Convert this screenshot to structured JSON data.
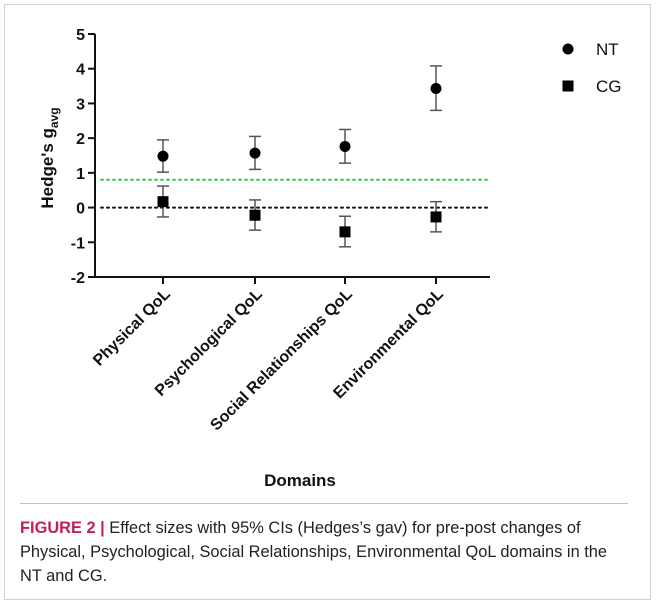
{
  "chart_data": {
    "type": "scatter",
    "ylabel_main": "Hedge's g",
    "ylabel_sub": "avg",
    "xlabel": "Domains",
    "categories": [
      "Physical QoL",
      "Psychological QoL",
      "Social Relationships QoL",
      "Environmental QoL"
    ],
    "ylim": [
      -2,
      5
    ],
    "yticks": [
      -2,
      -1,
      0,
      1,
      2,
      3,
      4,
      5
    ],
    "legend_position": "top-right",
    "series": [
      {
        "name": "NT",
        "marker": "circle",
        "values": [
          1.48,
          1.57,
          1.76,
          3.43
        ],
        "ci_low": [
          1.02,
          1.1,
          1.28,
          2.8
        ],
        "ci_high": [
          1.95,
          2.05,
          2.25,
          4.08
        ]
      },
      {
        "name": "CG",
        "marker": "square",
        "values": [
          0.17,
          -0.22,
          -0.7,
          -0.27
        ],
        "ci_low": [
          -0.27,
          -0.65,
          -1.13,
          -0.7
        ],
        "ci_high": [
          0.62,
          0.22,
          -0.25,
          0.17
        ]
      }
    ],
    "reference_lines": [
      {
        "value": 0.8,
        "color": "#2ecc40",
        "style": "dotted"
      },
      {
        "value": 0,
        "color": "#111111",
        "style": "dotted"
      }
    ]
  },
  "caption": {
    "label": "FIGURE 2 |",
    "text": " Effect sizes with 95% CIs (Hedges’s gav) for pre-post changes of Physical, Psychological, Social Relationships, Environmental QoL domains in the NT and CG."
  }
}
